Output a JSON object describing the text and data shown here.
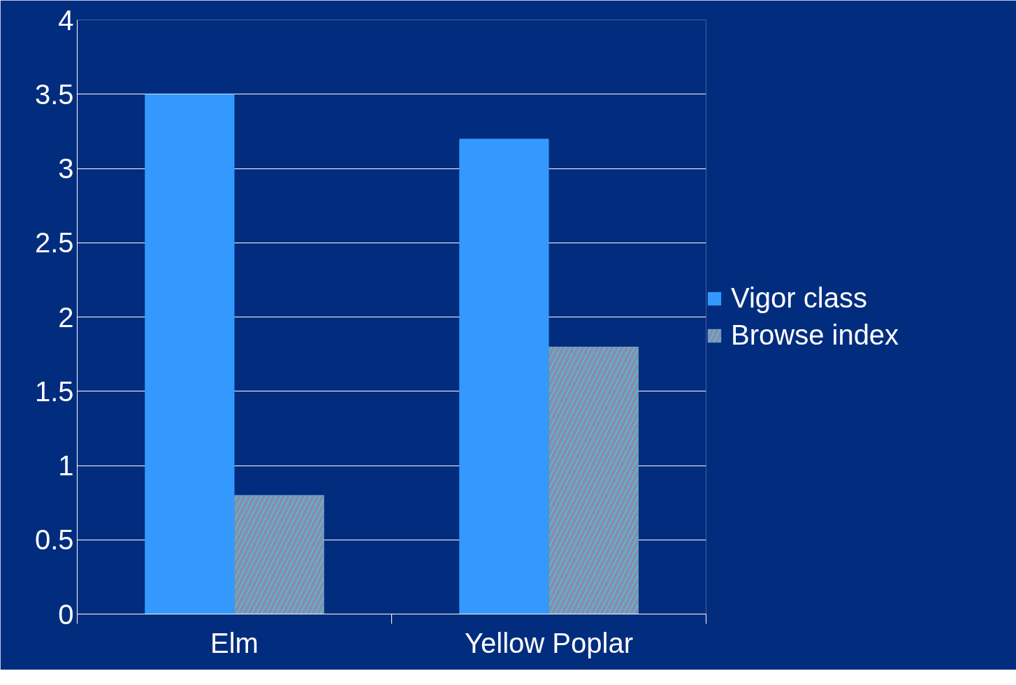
{
  "chart_data": {
    "type": "bar",
    "categories": [
      "Elm",
      "Yellow Poplar"
    ],
    "series": [
      {
        "name": "Vigor class",
        "color": "#3399ff",
        "values": [
          3.5,
          3.2
        ]
      },
      {
        "name": "Browse index",
        "color": "#40d0c8",
        "values": [
          0.8,
          1.8
        ]
      }
    ],
    "ylim": [
      0,
      4
    ],
    "yticks": [
      0,
      0.5,
      1,
      1.5,
      2,
      2.5,
      3,
      3.5,
      4
    ],
    "grid": "y",
    "legend": "right"
  }
}
